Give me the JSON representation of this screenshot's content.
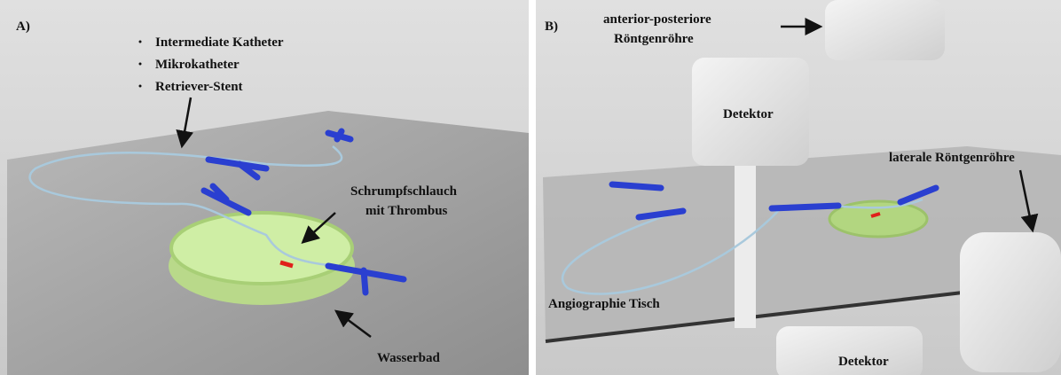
{
  "panels": [
    {
      "label": "A)",
      "items": [
        "Intermediate Katheter",
        "Mikrokatheter",
        "Retriever-Stent"
      ],
      "annotations": [
        "Schrumpfschlauch",
        "mit Thrombus",
        "Wasserbad"
      ]
    },
    {
      "label": "B)",
      "annotations": [
        "anterior-posteriore",
        "Röntgenröhre",
        "Detektor",
        "laterale Röntgenröhre",
        "Angiographie Tisch",
        "Detektor"
      ]
    }
  ]
}
